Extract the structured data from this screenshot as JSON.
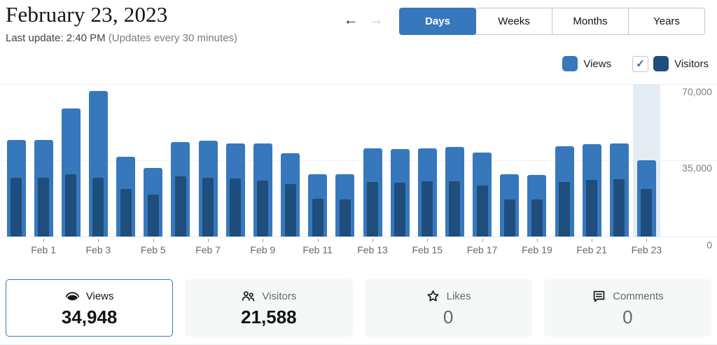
{
  "header": {
    "title": "February 23, 2023",
    "last_update": "Last update: 2:40 PM",
    "update_note": "(Updates every 30 minutes)",
    "prev_arrow": "←",
    "next_arrow": "→"
  },
  "tabs": [
    {
      "label": "Days",
      "active": true
    },
    {
      "label": "Weeks",
      "active": false
    },
    {
      "label": "Months",
      "active": false
    },
    {
      "label": "Years",
      "active": false
    }
  ],
  "legend": {
    "views_label": "Views",
    "visitors_label": "Visitors",
    "visitors_checked": true,
    "checkmark": "✓"
  },
  "colors": {
    "accent": "#3778bd",
    "views": "#3778bd",
    "visitors": "#1f4e7c",
    "highlight_column": "#e6ecf4"
  },
  "chart_data": {
    "type": "bar",
    "title": "Daily views and visitors",
    "categories": [
      "Jan 31",
      "Feb 1",
      "Feb 2",
      "Feb 3",
      "Feb 4",
      "Feb 5",
      "Feb 6",
      "Feb 7",
      "Feb 8",
      "Feb 9",
      "Feb 10",
      "Feb 11",
      "Feb 12",
      "Feb 13",
      "Feb 14",
      "Feb 15",
      "Feb 16",
      "Feb 17",
      "Feb 18",
      "Feb 19",
      "Feb 20",
      "Feb 21",
      "Feb 22",
      "Feb 23"
    ],
    "series": [
      {
        "name": "Views",
        "values": [
          44200,
          44200,
          58500,
          66600,
          36300,
          31200,
          43300,
          43700,
          42600,
          42600,
          38100,
          28500,
          28600,
          40300,
          40100,
          40200,
          41000,
          38300,
          28600,
          28100,
          41100,
          42200,
          42500,
          34948
        ]
      },
      {
        "name": "Visitors",
        "values": [
          26700,
          26700,
          28300,
          27000,
          21600,
          19100,
          27400,
          27000,
          26400,
          25700,
          23900,
          17300,
          17100,
          24900,
          24700,
          25100,
          25100,
          23200,
          16900,
          17100,
          24900,
          25900,
          26300,
          21588
        ]
      }
    ],
    "ylim": [
      0,
      70000
    ],
    "ytick_labels": [
      "70,000",
      "35,000",
      "0"
    ],
    "xtick_labels": [
      "Feb 1",
      "Feb 3",
      "Feb 5",
      "Feb 7",
      "Feb 9",
      "Feb 11",
      "Feb 13",
      "Feb 15",
      "Feb 17",
      "Feb 19",
      "Feb 21",
      "Feb 23"
    ],
    "highlighted_index": 23,
    "grid": true,
    "legend_position": "top-right"
  },
  "summary_cards": [
    {
      "id": "views",
      "icon": "eye-icon",
      "label": "Views",
      "value": "34,948",
      "selected": true,
      "muted": false
    },
    {
      "id": "visitors",
      "icon": "people-icon",
      "label": "Visitors",
      "value": "21,588",
      "selected": false,
      "muted": false
    },
    {
      "id": "likes",
      "icon": "star-icon",
      "label": "Likes",
      "value": "0",
      "selected": false,
      "muted": true
    },
    {
      "id": "comments",
      "icon": "comment-icon",
      "label": "Comments",
      "value": "0",
      "selected": false,
      "muted": true
    }
  ]
}
